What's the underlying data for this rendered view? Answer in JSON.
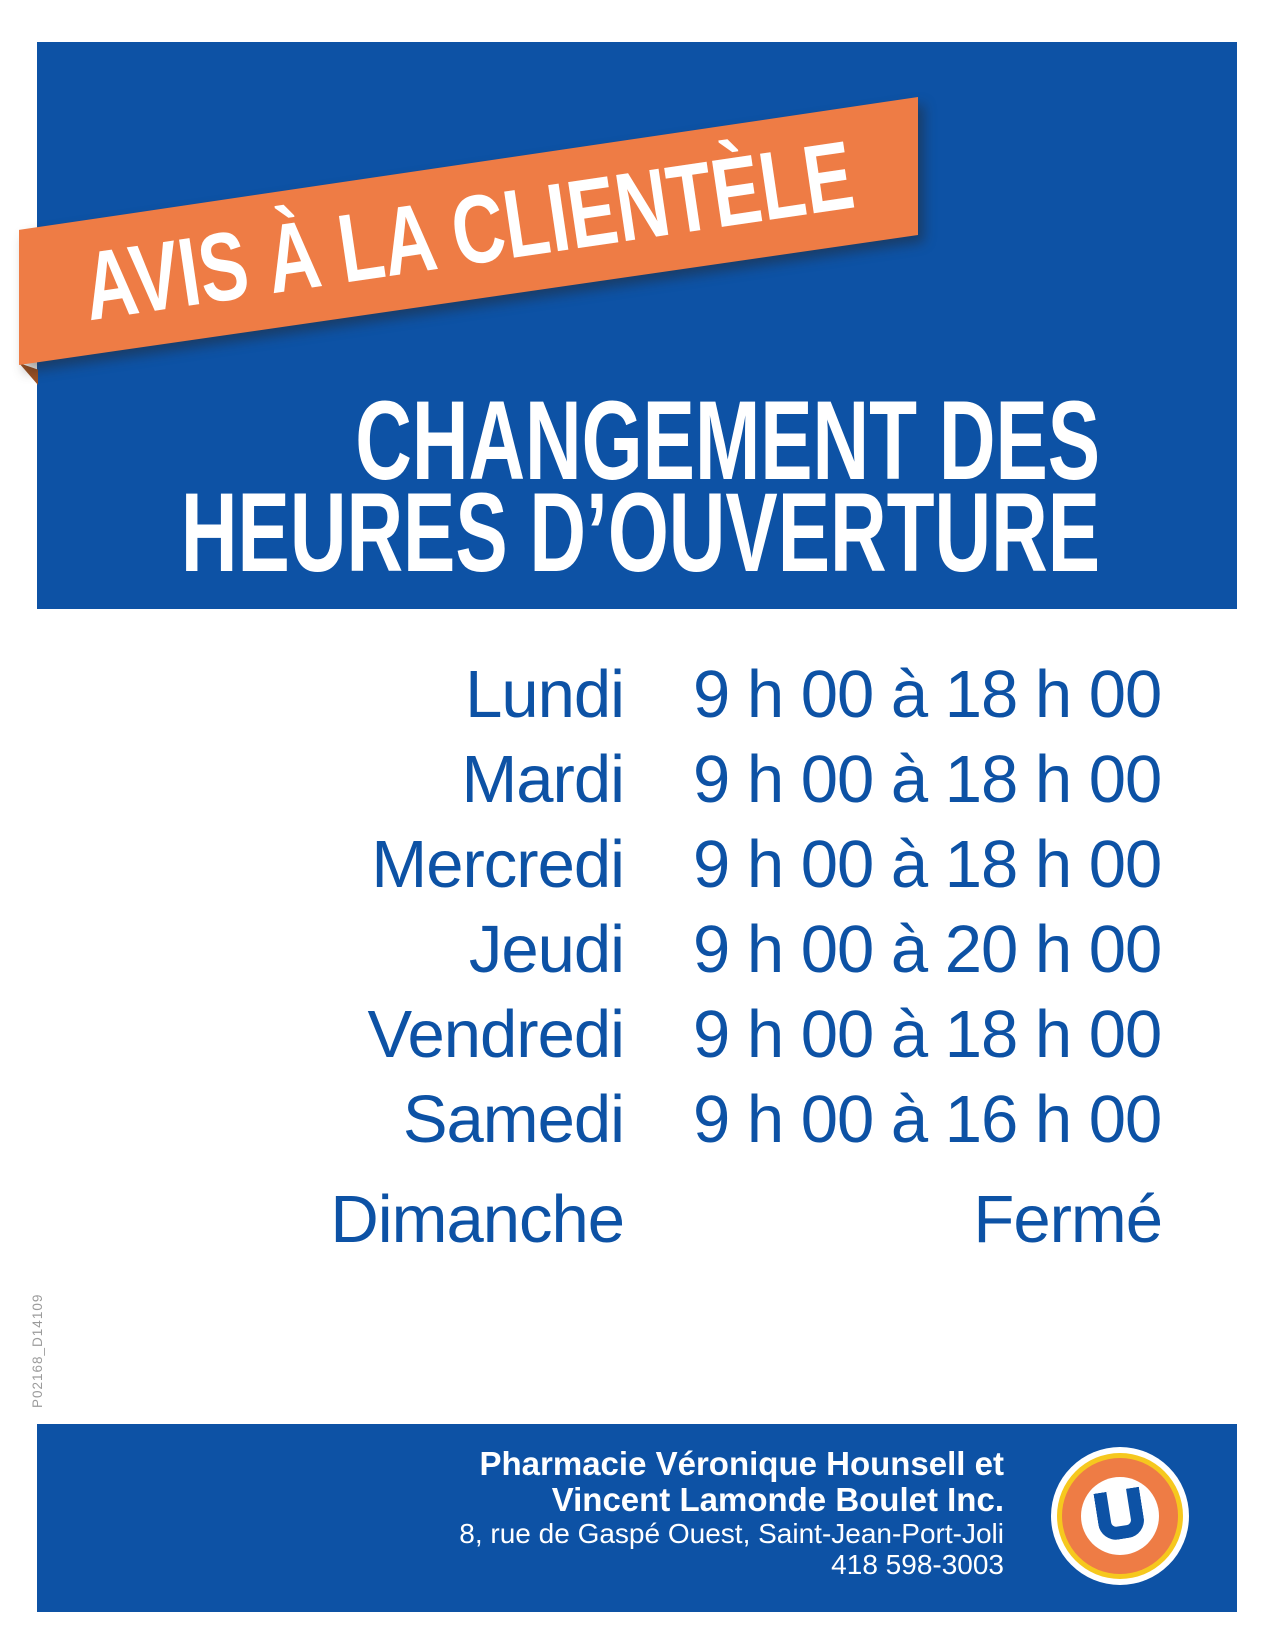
{
  "banner": {
    "text": "AVIS À LA CLIENTÈLE"
  },
  "title": {
    "line1": "CHANGEMENT DES",
    "line2": "HEURES D’OUVERTURE"
  },
  "schedule": [
    {
      "day": "Lundi",
      "time": "9 h 00 à 18 h 00"
    },
    {
      "day": "Mardi",
      "time": "9 h 00 à 18 h 00"
    },
    {
      "day": "Mercredi",
      "time": "9 h 00 à 18 h 00"
    },
    {
      "day": "Jeudi",
      "time": "9 h 00 à 20 h 00"
    },
    {
      "day": "Vendredi",
      "time": "9 h 00 à 18 h 00"
    },
    {
      "day": "Samedi",
      "time": "9 h 00 à 16 h 00"
    },
    {
      "day": "Dimanche",
      "time": "Fermé"
    }
  ],
  "footer": {
    "name_line1": "Pharmacie Véronique Hounsell et",
    "name_line2": "Vincent Lamonde Boulet Inc.",
    "address": "8, rue de Gaspé Ouest, Saint-Jean-Port-Joli",
    "phone": "418 598-3003",
    "logo_letter": "U"
  },
  "print_code": "P02168_D14109",
  "colors": {
    "blue": "#0d52a5",
    "orange": "#ee7c45",
    "fold": "#9a5023",
    "yellow": "#f6c81e",
    "gray": "#9b9b9b"
  }
}
